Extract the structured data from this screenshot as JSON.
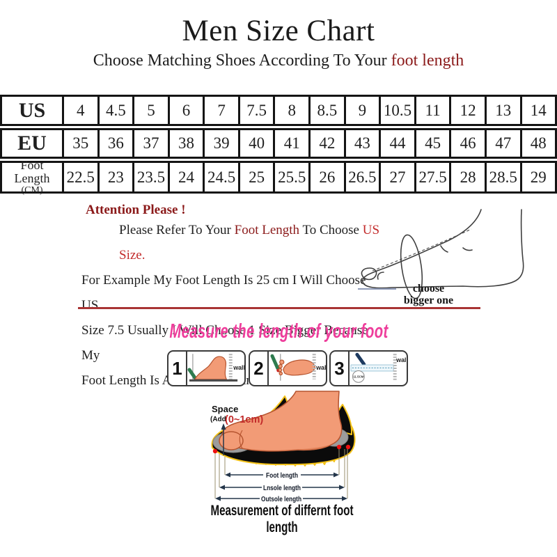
{
  "header": {
    "title": "Men Size Chart",
    "subtitle_prefix": "Choose Matching Shoes According To Your ",
    "subtitle_highlight": "foot length"
  },
  "size_table": {
    "rows": [
      {
        "label": "US",
        "sublabel": "",
        "values": [
          "4",
          "4.5",
          "5",
          "6",
          "7",
          "7.5",
          "8",
          "8.5",
          "9",
          "10.5",
          "11",
          "12",
          "13",
          "14"
        ]
      },
      {
        "label": "EU",
        "sublabel": "",
        "values": [
          "35",
          "36",
          "37",
          "38",
          "39",
          "40",
          "41",
          "42",
          "43",
          "44",
          "45",
          "46",
          "47",
          "48"
        ]
      },
      {
        "label": "Foot Length",
        "sublabel": "(CM)",
        "values": [
          "22.5",
          "23",
          "23.5",
          "24",
          "24.5",
          "25",
          "25.5",
          "26",
          "26.5",
          "27",
          "27.5",
          "28",
          "28.5",
          "29"
        ]
      }
    ]
  },
  "attention": {
    "heading": "Attention Please !",
    "lines": [
      {
        "indent": true,
        "segments": [
          {
            "text": "Please Refer To Your ",
            "color": "ink"
          },
          {
            "text": "Foot Length",
            "color": "dark_red"
          },
          {
            "text": " To Choose ",
            "color": "ink"
          },
          {
            "text": "US Size.",
            "color": "red_bright"
          }
        ]
      },
      {
        "indent": false,
        "segments": [
          {
            "text": "For Example My Foot Length Is 25 cm I Will Choose US",
            "color": "ink"
          }
        ]
      },
      {
        "indent": false,
        "segments": [
          {
            "text": "Size 7.5 Usually I Will Choose 1 Size Bigger Because My",
            "color": "ink"
          }
        ]
      },
      {
        "indent": false,
        "segments": [
          {
            "text": "Foot Length Is A Little Wide And Fat",
            "color": "ink"
          }
        ]
      }
    ]
  },
  "foot_sketch": {
    "note_line1": "choose",
    "note_line2": "bigger one"
  },
  "measure": {
    "heading": "Measure the length of your foot",
    "panels": [
      {
        "number": "1",
        "wall_label": "wall"
      },
      {
        "number": "2",
        "wall_label": "wall"
      },
      {
        "number": "3",
        "wall_label": "wall"
      }
    ],
    "panel3_circle_label": "11.5CM"
  },
  "diagram": {
    "space_label": "Space",
    "add_label": "(Add",
    "range_label": "(0~1cm)",
    "arrow_labels": [
      "Foot length",
      "Lnsole length",
      "Outsole length"
    ],
    "caption": "Measurement of differnt foot length"
  },
  "colors": {
    "ink": "#1f1f1f",
    "dark_red": "#8B1A1A",
    "red_bright": "#C22A2A",
    "pink": "#EE3D9B",
    "line_red": "#A93434",
    "line_blue": "#8E9AB8",
    "salmon": "#F29B76",
    "salmon_dark": "#B5542F",
    "sole_yellow": "#F3C21A",
    "insole_gray": "#9C9C9C",
    "pen_green": "#2E7B4E",
    "pen_navy": "#1D3A5F",
    "tape_blue": "#9FC6D8"
  }
}
